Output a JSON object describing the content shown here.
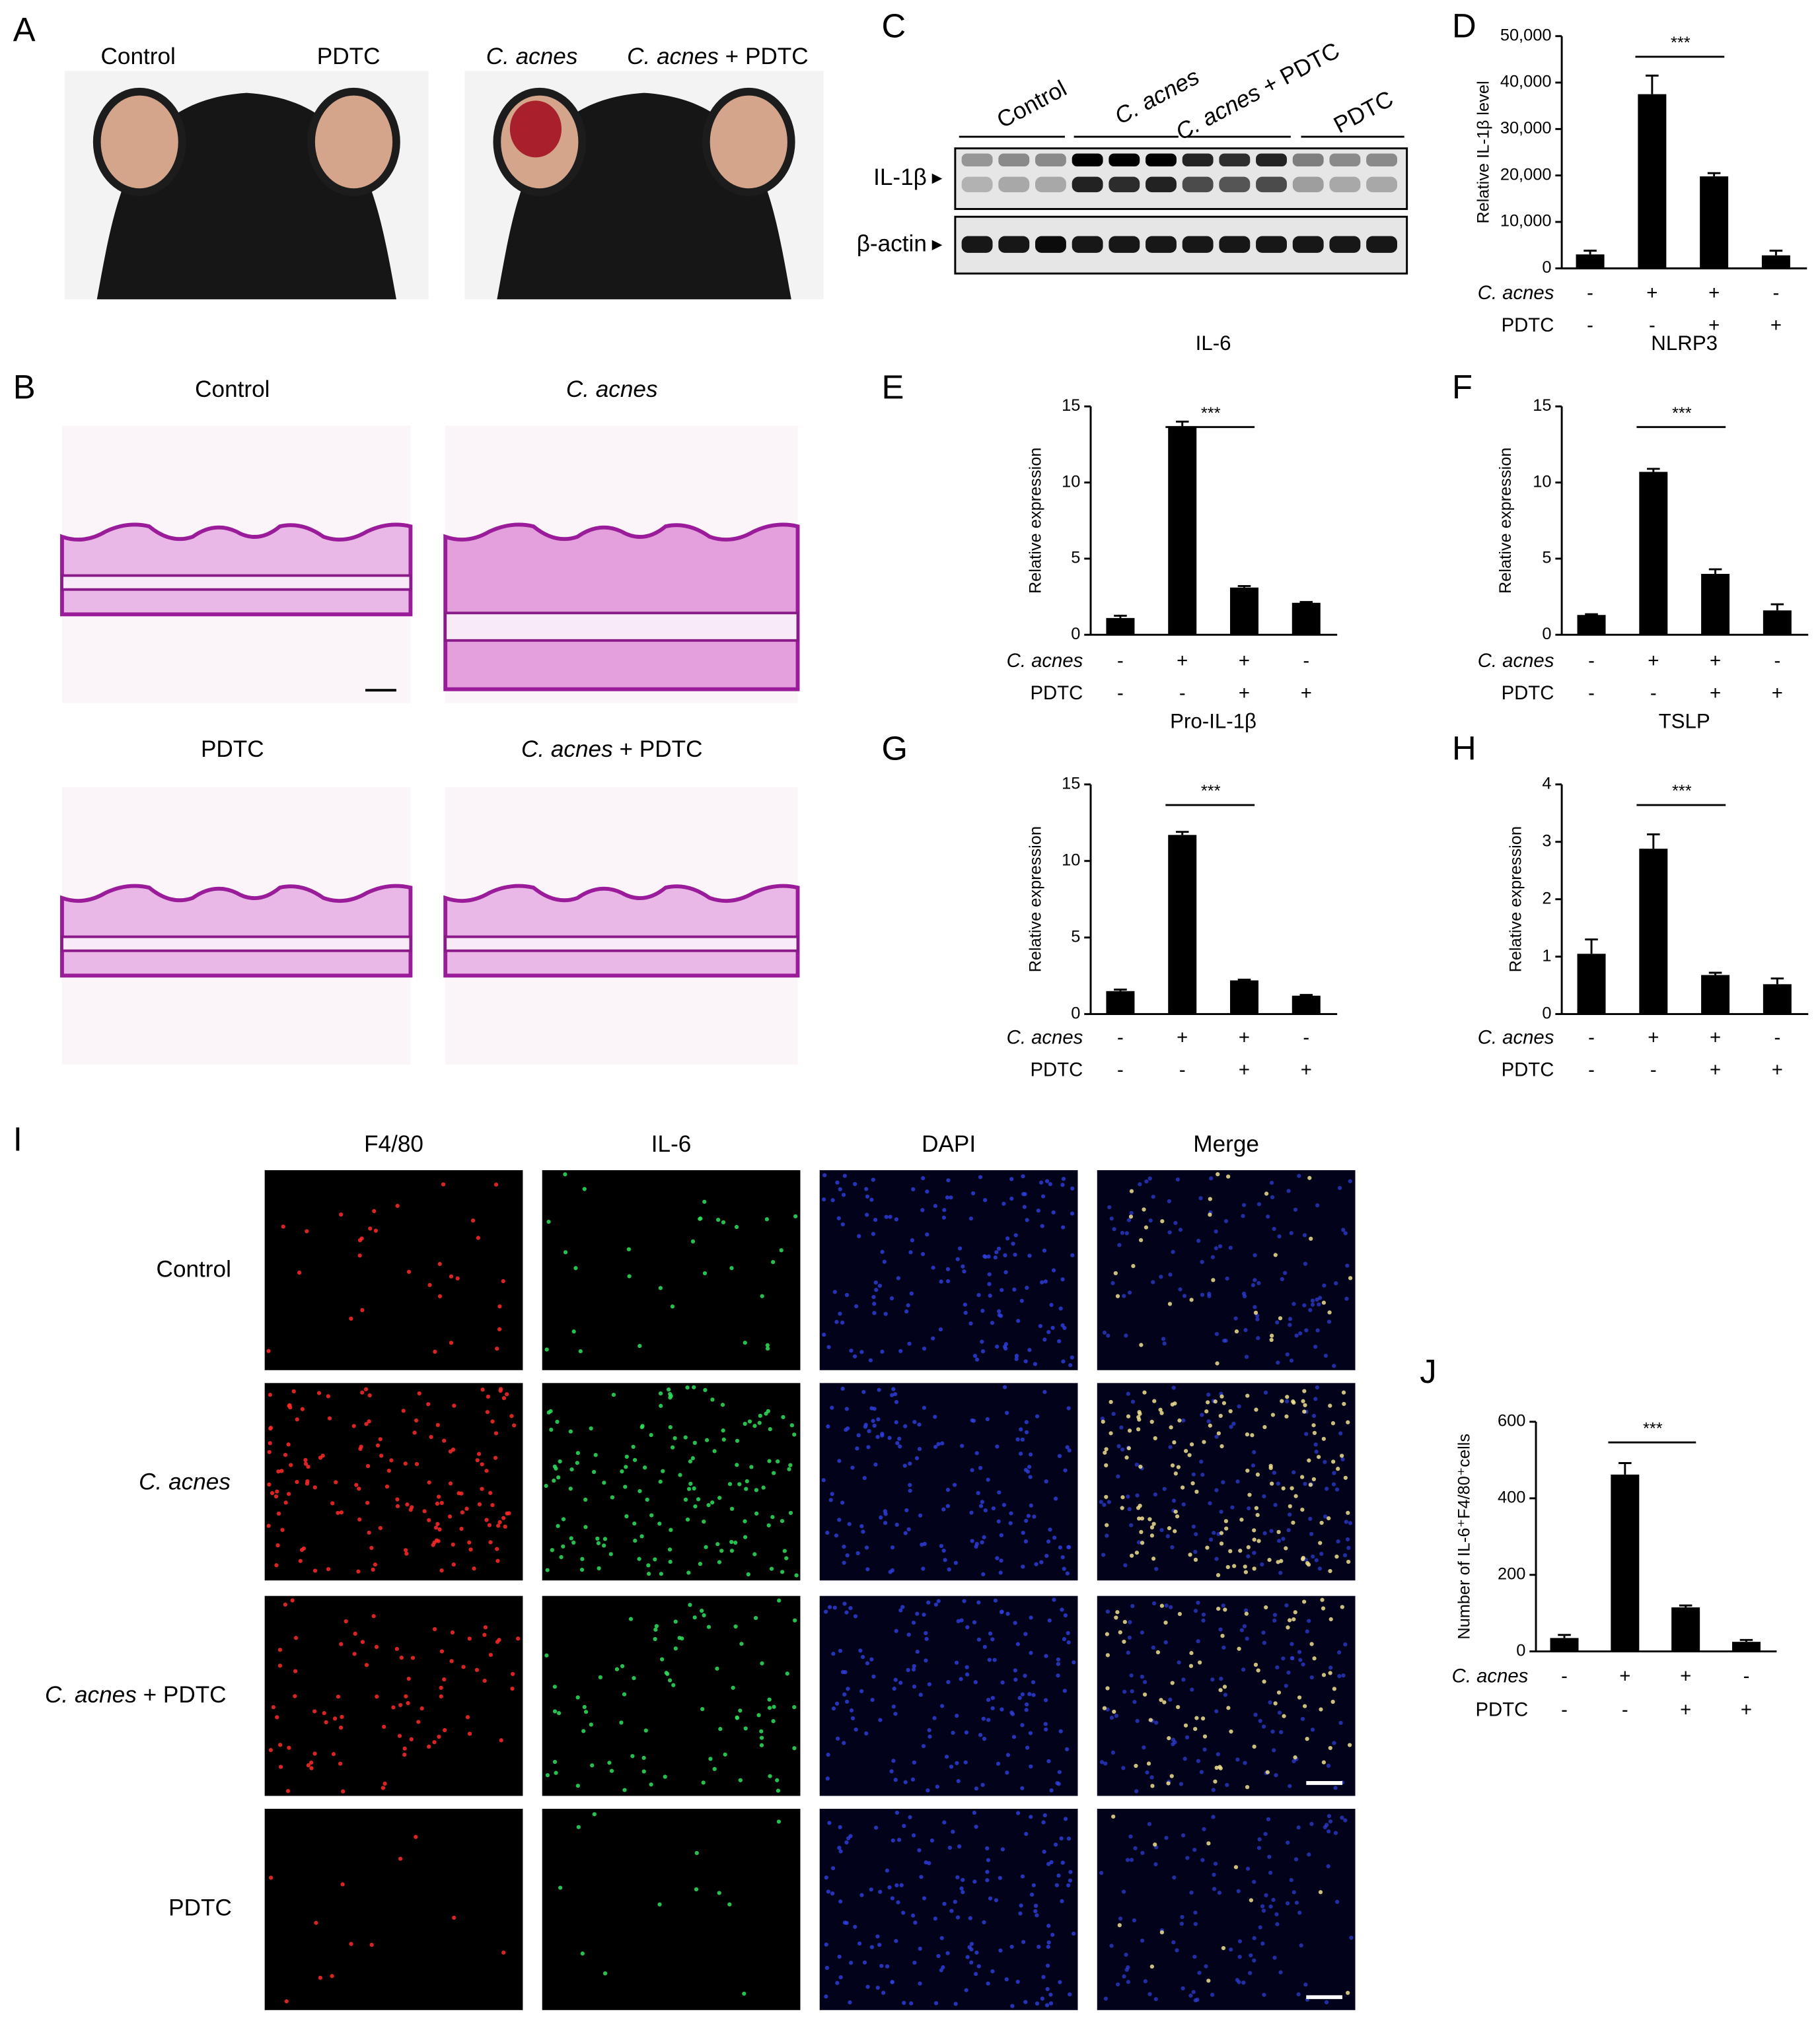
{
  "figure": {
    "panel_letters": [
      "A",
      "B",
      "C",
      "D",
      "E",
      "F",
      "G",
      "H",
      "I",
      "J"
    ],
    "A": {
      "labels": [
        {
          "text": "Control"
        },
        {
          "text": "PDTC"
        },
        {
          "italic": "C. acnes"
        },
        {
          "italic": "C. acnes",
          "text": "+ PDTC"
        }
      ]
    },
    "B": {
      "labels": [
        {
          "text": "Control"
        },
        {
          "italic": "C. acnes"
        },
        {
          "text": "PDTC"
        },
        {
          "italic": "C. acnes",
          "text": "+ PDTC"
        }
      ]
    },
    "C": {
      "lane_groups": [
        {
          "text": "Control"
        },
        {
          "italic": "C. acnes"
        },
        {
          "italic": "C. acnes",
          "text": "+ PDTC"
        },
        {
          "text": "PDTC"
        }
      ],
      "rows": [
        "IL-1β",
        "β-actin"
      ]
    },
    "I": {
      "columns": [
        {
          "text": "F4/80",
          "color": "#e8262a"
        },
        {
          "text": "IL-6",
          "color": "#1fae4a"
        },
        {
          "text": "DAPI",
          "color": "#1f7fd0"
        },
        {
          "text": "Merge",
          "color": "#000000"
        }
      ],
      "rows": [
        {
          "text": "Control"
        },
        {
          "italic": "C. acnes"
        },
        {
          "italic": "C. acnes",
          "text": "+ PDTC"
        },
        {
          "text": "PDTC"
        }
      ]
    }
  },
  "chart_data": [
    {
      "type": "bar",
      "y_label": "Relative IL-1β level",
      "ylim": [
        0,
        50000
      ],
      "yticks": [
        0,
        {
          "value": 10000,
          "label": "10,000"
        },
        {
          "value": 20000,
          "label": "20,000"
        },
        {
          "value": 30000,
          "label": "30,000"
        },
        {
          "value": 40000,
          "label": "40,000"
        },
        {
          "value": 50000,
          "label": "50,000"
        }
      ],
      "values": [
        3000,
        37500,
        19800,
        2800
      ],
      "errors": [
        800,
        4000,
        700,
        1000
      ],
      "color": "#000000",
      "significance": "***",
      "conditions": [
        {
          "name": "C. acnes",
          "marks": [
            "-",
            "+",
            "+",
            "-"
          ]
        },
        {
          "name": "PDTC",
          "marks": [
            "-",
            "-",
            "+",
            "+"
          ]
        }
      ]
    },
    {
      "type": "bar",
      "title": "IL-6",
      "y_label": "Relative expression",
      "ylim": [
        0,
        15
      ],
      "yticks": [
        0,
        5,
        10,
        15
      ],
      "values": [
        1.1,
        13.7,
        3.1,
        2.1
      ],
      "errors": [
        0.15,
        0.3,
        0.1,
        0.05
      ],
      "color": "#000000",
      "significance": "***",
      "conditions": [
        {
          "name": "C. acnes",
          "marks": [
            "-",
            "+",
            "+",
            "-"
          ]
        },
        {
          "name": "PDTC",
          "marks": [
            "-",
            "-",
            "+",
            "+"
          ]
        }
      ]
    },
    {
      "type": "bar",
      "title": "NLRP3",
      "y_label": "Relative expression",
      "ylim": [
        0,
        15
      ],
      "yticks": [
        0,
        5,
        10,
        15
      ],
      "values": [
        1.3,
        10.7,
        4.0,
        1.6
      ],
      "errors": [
        0.05,
        0.2,
        0.3,
        0.4
      ],
      "color": "#000000",
      "significance": "***",
      "conditions": [
        {
          "name": "C. acnes",
          "marks": [
            "-",
            "+",
            "+",
            "-"
          ]
        },
        {
          "name": "PDTC",
          "marks": [
            "-",
            "-",
            "+",
            "+"
          ]
        }
      ]
    },
    {
      "type": "bar",
      "title": "Pro-IL-1β",
      "y_label": "Relative expression",
      "ylim": [
        0,
        15
      ],
      "yticks": [
        0,
        5,
        10,
        15
      ],
      "values": [
        1.5,
        11.7,
        2.2,
        1.2
      ],
      "errors": [
        0.1,
        0.2,
        0.05,
        0.05
      ],
      "color": "#000000",
      "significance": "***",
      "conditions": [
        {
          "name": "C. acnes",
          "marks": [
            "-",
            "+",
            "+",
            "-"
          ]
        },
        {
          "name": "PDTC",
          "marks": [
            "-",
            "-",
            "+",
            "+"
          ]
        }
      ]
    },
    {
      "type": "bar",
      "title": "TSLP",
      "y_label": "Relative expression",
      "ylim": [
        0,
        4
      ],
      "yticks": [
        0,
        1,
        2,
        3,
        4
      ],
      "values": [
        1.05,
        2.88,
        0.68,
        0.52
      ],
      "errors": [
        0.25,
        0.25,
        0.04,
        0.1
      ],
      "color": "#000000",
      "significance": "***",
      "conditions": [
        {
          "name": "C. acnes",
          "marks": [
            "-",
            "+",
            "+",
            "-"
          ]
        },
        {
          "name": "PDTC",
          "marks": [
            "-",
            "-",
            "+",
            "+"
          ]
        }
      ]
    },
    {
      "type": "bar",
      "y_label": "Number of IL-6⁺F4/80⁺cells",
      "ylim": [
        0,
        600
      ],
      "yticks": [
        0,
        200,
        400,
        600
      ],
      "values": [
        35,
        462,
        115,
        25
      ],
      "errors": [
        8,
        30,
        5,
        5
      ],
      "color": "#000000",
      "significance": "***",
      "conditions": [
        {
          "name": "C. acnes",
          "marks": [
            "-",
            "+",
            "+",
            "-"
          ]
        },
        {
          "name": "PDTC",
          "marks": [
            "-",
            "-",
            "+",
            "+"
          ]
        }
      ]
    }
  ]
}
